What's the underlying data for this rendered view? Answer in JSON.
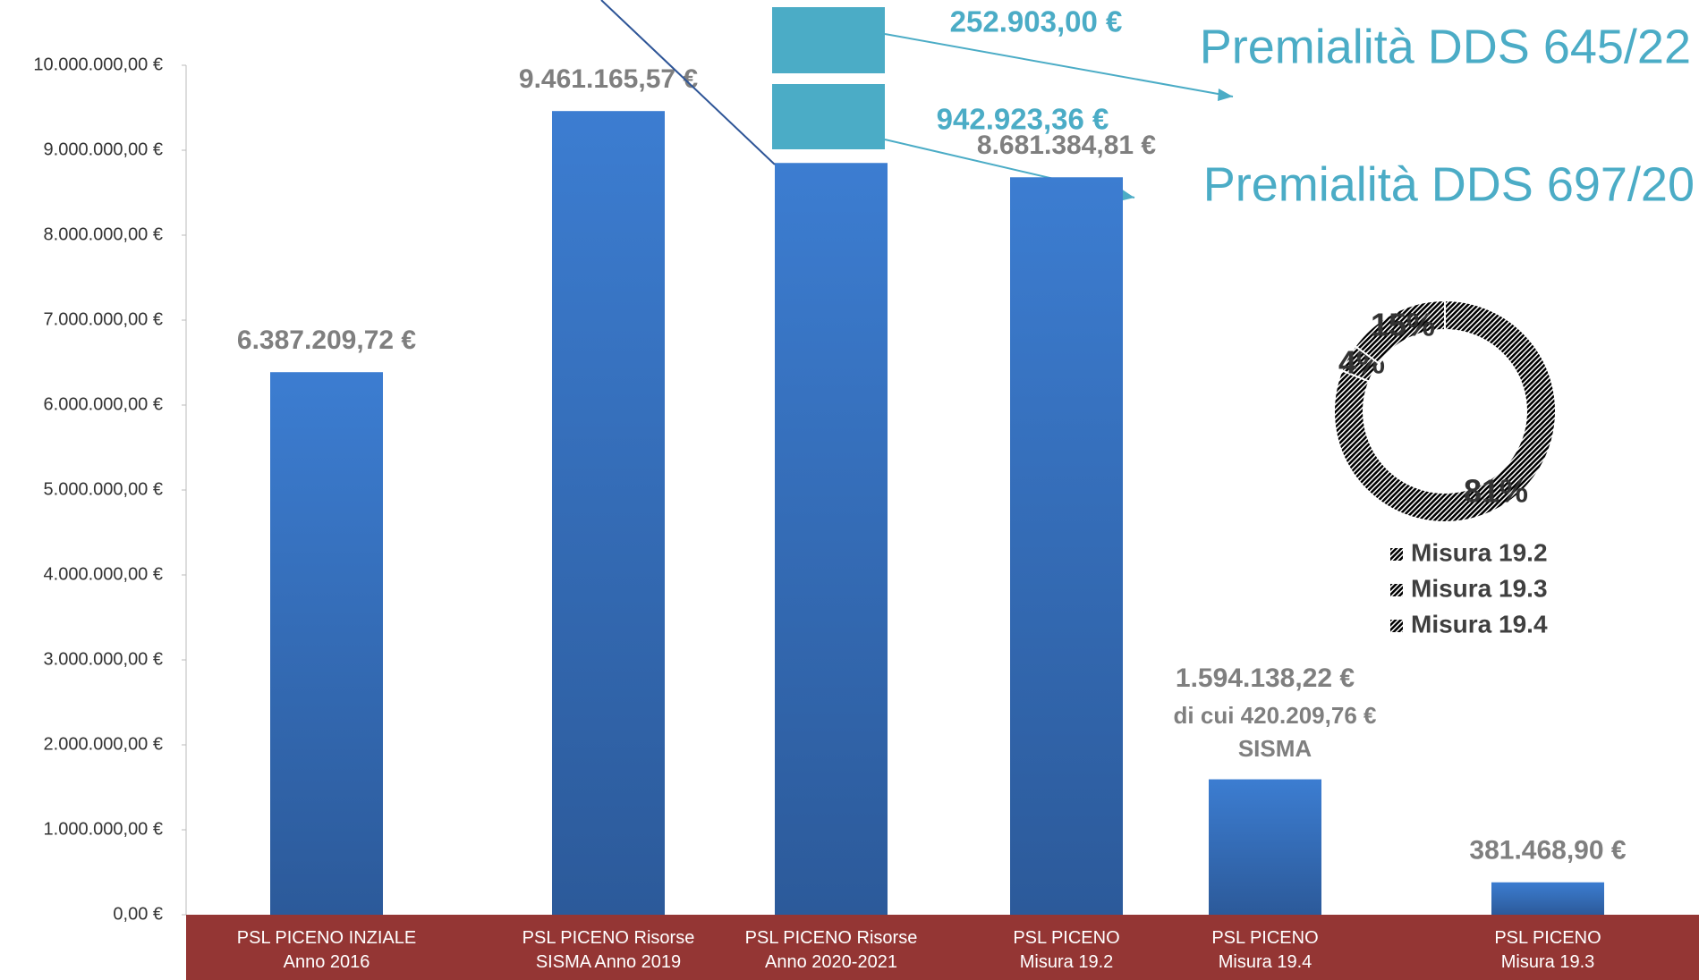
{
  "chart_data": [
    {
      "type": "bar",
      "categories": [
        "PSL PICENO INZIALE\nAnno 2016",
        "PSL PICENO Risorse\nSISMA Anno 2019",
        "PSL PICENO Risorse\nAnno 2020-2021",
        "PSL PICENO\nMisura 19.2",
        "PSL PICENO\nMisura 19.4",
        "PSL PICENO\nMisura 19.3"
      ],
      "values": [
        6387209.72,
        9461165.57,
        8850000,
        8681384.81,
        1594138.22,
        381468.9
      ],
      "value_labels": [
        "6.387.209,72 €",
        "9.461.165,57 €",
        null,
        "8.681.384,81 €",
        "1.594.138,22 €",
        "381.468,90 €"
      ],
      "color": "#3a78c8",
      "ylim": [
        0,
        10000000
      ],
      "yticks": [
        {
          "value": 0,
          "label": "0,00 €"
        },
        {
          "value": 1000000,
          "label": "1.000.000,00 €"
        },
        {
          "value": 2000000,
          "label": "2.000.000,00 €"
        },
        {
          "value": 3000000,
          "label": "3.000.000,00 €"
        },
        {
          "value": 4000000,
          "label": "4.000.000,00 €"
        },
        {
          "value": 5000000,
          "label": "5.000.000,00 €"
        },
        {
          "value": 6000000,
          "label": "6.000.000,00 €"
        },
        {
          "value": 7000000,
          "label": "7.000.000,00 €"
        },
        {
          "value": 8000000,
          "label": "8.000.000,00 €"
        },
        {
          "value": 9000000,
          "label": "9.000.000,00 €"
        },
        {
          "value": 10000000,
          "label": "10.000.000,00 €"
        }
      ],
      "annotations": [
        "di cui 420.209,76 €",
        "SISMA"
      ],
      "premiums": [
        {
          "amount": "252.903,00 €",
          "title": "Premialità DDS 645/22"
        },
        {
          "amount": "942.923,36 €",
          "title": "Premialità DDS 697/20"
        }
      ]
    },
    {
      "type": "pie",
      "categories": [
        "Misura 19.2",
        "Misura 19.3",
        "Misura 19.4"
      ],
      "values": [
        81,
        4,
        15
      ],
      "value_labels": [
        "81%",
        "4%",
        "15%"
      ],
      "colors": [
        "#8faadc",
        "#e06666",
        "#b5d98f"
      ]
    }
  ]
}
